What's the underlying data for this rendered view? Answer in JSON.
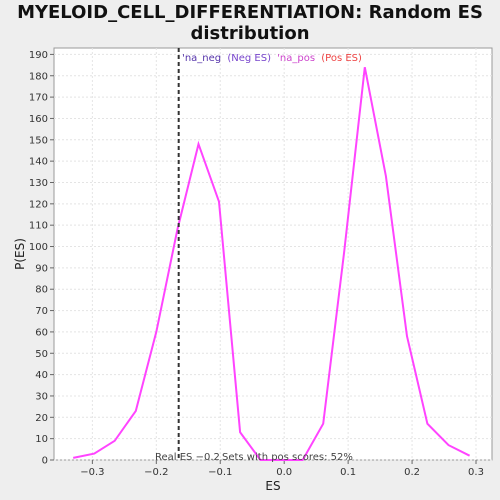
{
  "chart_data": {
    "type": "line",
    "title_line1": "MYELOID_CELL_DIFFERENTIATION: Random ES",
    "title_line2": "distribution",
    "xlabel": "ES",
    "ylabel": "P(ES)",
    "xlim": [
      -0.36,
      0.325
    ],
    "ylim": [
      0,
      193
    ],
    "x_ticks": [
      -0.3,
      -0.2,
      -0.1,
      0.0,
      0.1,
      0.2,
      0.3
    ],
    "x_tick_labels": [
      "−0.3",
      "−0.2",
      "−0.1",
      "0.0",
      "0.1",
      "0.2",
      "0.3"
    ],
    "y_ticks": [
      0,
      10,
      20,
      30,
      40,
      50,
      60,
      70,
      80,
      90,
      100,
      110,
      120,
      130,
      140,
      150,
      160,
      170,
      180,
      190
    ],
    "grid": true,
    "legend": {
      "position": "top-center",
      "parts": [
        {
          "text": "'na_neg",
          "color": "#5533aa"
        },
        {
          "text": "(Neg ES)",
          "color": "#7744cc"
        },
        {
          "text": "'na_pos",
          "color": "#cc44cc"
        },
        {
          "text": "(Pos ES)",
          "color": "#ee4444"
        }
      ]
    },
    "series": [
      {
        "color": "#ff44ff",
        "x": [
          -0.33,
          -0.297,
          -0.265,
          -0.232,
          -0.2,
          -0.167,
          -0.134,
          -0.102,
          -0.069,
          -0.037,
          -0.004,
          0.029,
          0.061,
          0.094,
          0.126,
          0.159,
          0.192,
          0.224,
          0.257,
          0.29
        ],
        "y": [
          1,
          3,
          9,
          23,
          60,
          108,
          148,
          121,
          13,
          0,
          0,
          0,
          17,
          98,
          184,
          133,
          58,
          17,
          7,
          2
        ]
      }
    ],
    "reference_line": {
      "x": -0.165,
      "color": "#333333",
      "style": "dashed"
    },
    "annotations": {
      "real_es": "Real ES −0.2",
      "pos_scores": "Sets with pos scores: 52%"
    }
  }
}
